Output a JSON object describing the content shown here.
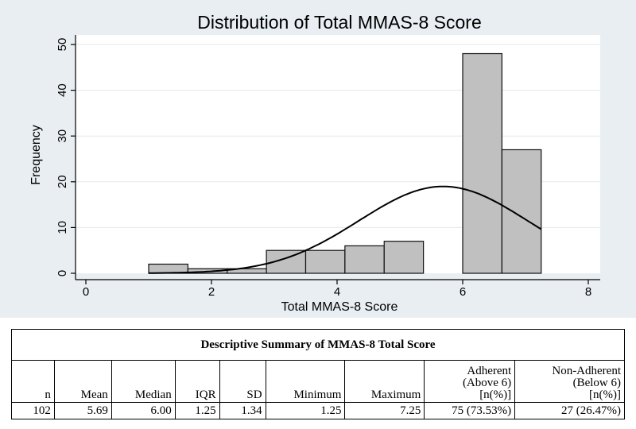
{
  "chart_data": {
    "type": "bar",
    "title": "Distribution of Total MMAS-8 Score",
    "xlabel": "Total MMAS-8 Score",
    "ylabel": "Frequency",
    "xlim": [
      0,
      8
    ],
    "ylim": [
      0,
      50
    ],
    "xticks": [
      0,
      2,
      4,
      6,
      8
    ],
    "yticks": [
      0,
      10,
      20,
      30,
      40,
      50
    ],
    "grid": true,
    "bins": [
      {
        "start": 1.0,
        "end": 1.625,
        "count": 2
      },
      {
        "start": 1.625,
        "end": 2.25,
        "count": 1
      },
      {
        "start": 2.25,
        "end": 2.875,
        "count": 1
      },
      {
        "start": 2.875,
        "end": 3.5,
        "count": 5
      },
      {
        "start": 3.5,
        "end": 4.125,
        "count": 5
      },
      {
        "start": 4.125,
        "end": 4.75,
        "count": 6
      },
      {
        "start": 4.75,
        "end": 5.375,
        "count": 7
      },
      {
        "start": 6.0,
        "end": 6.625,
        "count": 48
      },
      {
        "start": 6.625,
        "end": 7.25,
        "count": 27
      }
    ],
    "normal_curve": {
      "mean": 5.69,
      "sd": 1.34,
      "n": 102,
      "bin_width": 0.625,
      "x_start": 1.0,
      "x_end": 7.25
    }
  },
  "colors": {
    "plot_bg": "#ffffff",
    "outer_bg": "#e8eef2",
    "bar_fill": "#c0c0c0",
    "bar_stroke": "#111111",
    "grid": "#e3e8ec",
    "curve": "#000000"
  },
  "table": {
    "title": "Descriptive Summary of MMAS-8 Total Score",
    "headers": [
      "n",
      "Mean",
      "Median",
      "IQR",
      "SD",
      "Minimum",
      "Maximum",
      "Adherent\n(Above 6)\n[n(%)]",
      "Non-Adherent\n(Below 6)\n[n(%)]"
    ],
    "values": [
      "102",
      "5.69",
      "6.00",
      "1.25",
      "1.34",
      "1.25",
      "7.25",
      "75 (73.53%)",
      "27 (26.47%)"
    ]
  }
}
